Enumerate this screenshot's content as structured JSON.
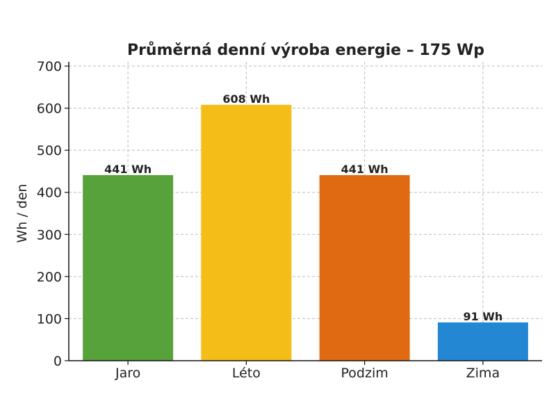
{
  "chart_data": {
    "type": "bar",
    "title": "Průměrná denní výroba energie – 175 Wp",
    "xlabel": "",
    "ylabel": "Wh / den",
    "categories": [
      "Jaro",
      "Léto",
      "Podzim",
      "Zima"
    ],
    "values": [
      441,
      608,
      441,
      91
    ],
    "data_labels": [
      "441 Wh",
      "608 Wh",
      "441 Wh",
      "91 Wh"
    ],
    "colors": [
      "#57a23a",
      "#f5bd18",
      "#e06a12",
      "#2387d4"
    ],
    "ylim": [
      0,
      710
    ],
    "yticks": [
      0,
      100,
      200,
      300,
      400,
      500,
      600,
      700
    ],
    "grid": true
  }
}
